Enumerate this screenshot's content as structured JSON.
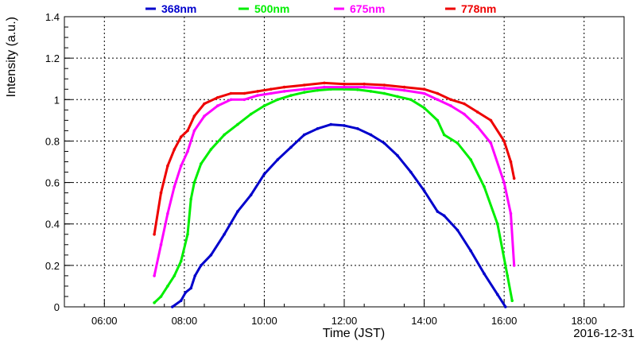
{
  "chart_data": {
    "type": "scatter",
    "title": "",
    "xlabel": "Time (JST)",
    "ylabel": "Intensity (a.u.)",
    "date_label": "2016-12-31",
    "xlim": [
      "05:00",
      "19:00"
    ],
    "ylim": [
      0,
      1.4
    ],
    "x_ticks": [
      "06:00",
      "08:00",
      "10:00",
      "12:00",
      "14:00",
      "16:00",
      "18:00"
    ],
    "y_ticks": [
      "0",
      "0.2",
      "0.4",
      "0.6",
      "0.8",
      "1",
      "1.2",
      "1.4"
    ],
    "grid": true,
    "legend_position": "top",
    "series": [
      {
        "name": "368nm",
        "color": "#0000cc",
        "points": [
          [
            "07:42",
            0.0
          ],
          [
            "07:55",
            0.03
          ],
          [
            "08:02",
            0.07
          ],
          [
            "08:10",
            0.09
          ],
          [
            "08:16",
            0.15
          ],
          [
            "08:25",
            0.2
          ],
          [
            "08:40",
            0.25
          ],
          [
            "09:00",
            0.35
          ],
          [
            "09:20",
            0.46
          ],
          [
            "09:40",
            0.54
          ],
          [
            "10:00",
            0.64
          ],
          [
            "10:20",
            0.71
          ],
          [
            "10:40",
            0.77
          ],
          [
            "11:00",
            0.83
          ],
          [
            "11:20",
            0.86
          ],
          [
            "11:40",
            0.88
          ],
          [
            "12:00",
            0.875
          ],
          [
            "12:20",
            0.86
          ],
          [
            "12:40",
            0.83
          ],
          [
            "13:00",
            0.79
          ],
          [
            "13:20",
            0.73
          ],
          [
            "13:40",
            0.65
          ],
          [
            "14:00",
            0.56
          ],
          [
            "14:20",
            0.46
          ],
          [
            "14:30",
            0.44
          ],
          [
            "14:50",
            0.37
          ],
          [
            "15:10",
            0.27
          ],
          [
            "15:30",
            0.16
          ],
          [
            "15:50",
            0.06
          ],
          [
            "16:02",
            0.0
          ]
        ]
      },
      {
        "name": "500nm",
        "color": "#00ee00",
        "points": [
          [
            "07:15",
            0.02
          ],
          [
            "07:25",
            0.05
          ],
          [
            "07:35",
            0.1
          ],
          [
            "07:45",
            0.15
          ],
          [
            "07:55",
            0.22
          ],
          [
            "08:05",
            0.35
          ],
          [
            "08:10",
            0.52
          ],
          [
            "08:15",
            0.6
          ],
          [
            "08:25",
            0.69
          ],
          [
            "08:40",
            0.76
          ],
          [
            "09:00",
            0.83
          ],
          [
            "09:20",
            0.88
          ],
          [
            "09:40",
            0.93
          ],
          [
            "10:00",
            0.97
          ],
          [
            "10:20",
            1.0
          ],
          [
            "10:40",
            1.02
          ],
          [
            "11:00",
            1.035
          ],
          [
            "11:20",
            1.045
          ],
          [
            "11:40",
            1.05
          ],
          [
            "12:00",
            1.05
          ],
          [
            "12:20",
            1.048
          ],
          [
            "12:40",
            1.04
          ],
          [
            "13:00",
            1.03
          ],
          [
            "13:20",
            1.015
          ],
          [
            "13:40",
            1.0
          ],
          [
            "14:00",
            0.96
          ],
          [
            "14:20",
            0.9
          ],
          [
            "14:30",
            0.83
          ],
          [
            "14:50",
            0.79
          ],
          [
            "15:10",
            0.71
          ],
          [
            "15:30",
            0.58
          ],
          [
            "15:50",
            0.4
          ],
          [
            "16:05",
            0.15
          ],
          [
            "16:12",
            0.03
          ]
        ]
      },
      {
        "name": "675nm",
        "color": "#ff00ff",
        "points": [
          [
            "07:15",
            0.15
          ],
          [
            "07:25",
            0.3
          ],
          [
            "07:35",
            0.45
          ],
          [
            "07:45",
            0.58
          ],
          [
            "07:55",
            0.68
          ],
          [
            "08:05",
            0.75
          ],
          [
            "08:15",
            0.85
          ],
          [
            "08:30",
            0.92
          ],
          [
            "08:50",
            0.97
          ],
          [
            "09:10",
            1.0
          ],
          [
            "09:30",
            1.0
          ],
          [
            "09:50",
            1.02
          ],
          [
            "10:10",
            1.03
          ],
          [
            "10:30",
            1.04
          ],
          [
            "11:00",
            1.05
          ],
          [
            "11:30",
            1.06
          ],
          [
            "12:00",
            1.06
          ],
          [
            "12:30",
            1.06
          ],
          [
            "13:00",
            1.055
          ],
          [
            "13:30",
            1.045
          ],
          [
            "14:00",
            1.03
          ],
          [
            "14:20",
            1.0
          ],
          [
            "14:40",
            0.97
          ],
          [
            "15:00",
            0.93
          ],
          [
            "15:20",
            0.87
          ],
          [
            "15:40",
            0.79
          ],
          [
            "16:00",
            0.6
          ],
          [
            "16:10",
            0.45
          ],
          [
            "16:15",
            0.2
          ]
        ]
      },
      {
        "name": "778nm",
        "color": "#ee0000",
        "points": [
          [
            "07:15",
            0.35
          ],
          [
            "07:25",
            0.55
          ],
          [
            "07:35",
            0.68
          ],
          [
            "07:45",
            0.76
          ],
          [
            "07:55",
            0.82
          ],
          [
            "08:05",
            0.85
          ],
          [
            "08:15",
            0.92
          ],
          [
            "08:30",
            0.98
          ],
          [
            "08:50",
            1.01
          ],
          [
            "09:10",
            1.03
          ],
          [
            "09:30",
            1.03
          ],
          [
            "09:50",
            1.04
          ],
          [
            "10:10",
            1.05
          ],
          [
            "10:30",
            1.06
          ],
          [
            "11:00",
            1.07
          ],
          [
            "11:30",
            1.08
          ],
          [
            "12:00",
            1.075
          ],
          [
            "12:30",
            1.075
          ],
          [
            "13:00",
            1.07
          ],
          [
            "13:30",
            1.06
          ],
          [
            "14:00",
            1.05
          ],
          [
            "14:20",
            1.03
          ],
          [
            "14:40",
            1.0
          ],
          [
            "15:00",
            0.98
          ],
          [
            "15:20",
            0.94
          ],
          [
            "15:40",
            0.9
          ],
          [
            "16:00",
            0.8
          ],
          [
            "16:10",
            0.7
          ],
          [
            "16:15",
            0.62
          ]
        ]
      }
    ]
  }
}
